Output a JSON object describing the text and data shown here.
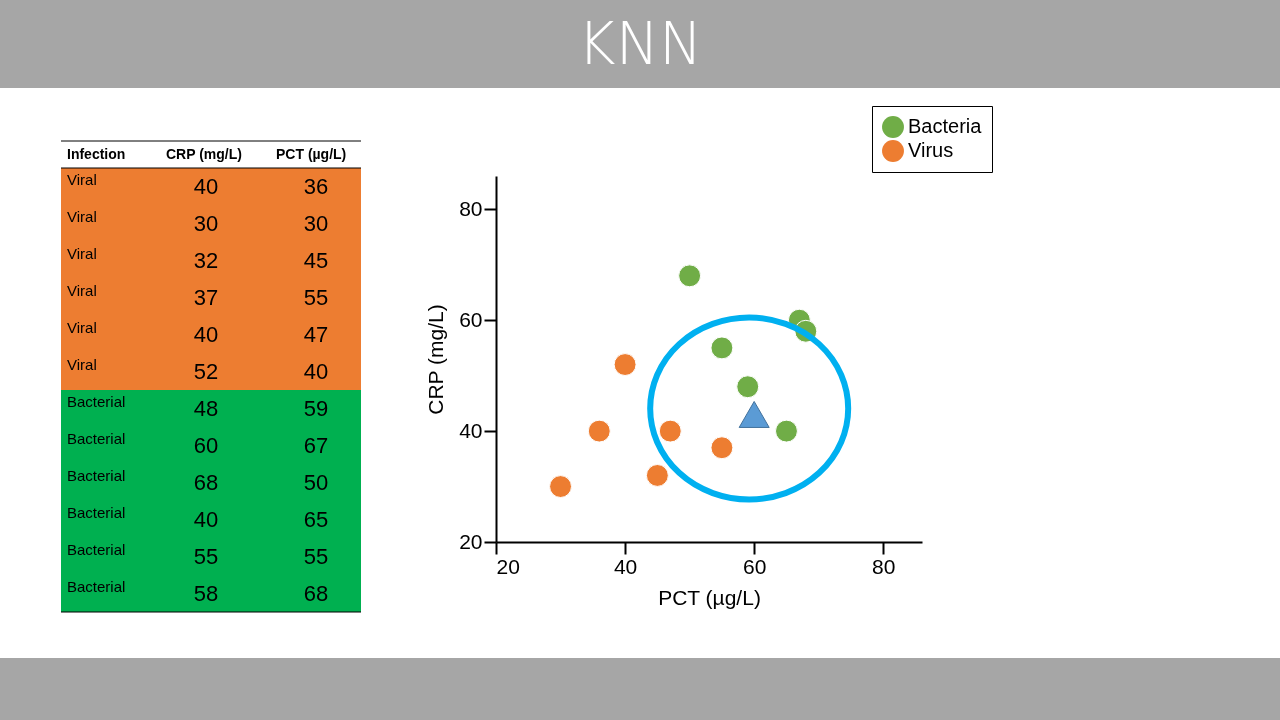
{
  "chart_data": [
    {
      "type": "other",
      "annotations": [
        "Infection",
        "CRP (mg/L)",
        "PCT (µg/L)",
        "Viral",
        "40",
        "36",
        "Viral",
        "30",
        "30",
        "Viral",
        "32",
        "45",
        "Viral",
        "37",
        "55",
        "Viral",
        "40",
        "47",
        "Viral",
        "52",
        "40",
        "Bacterial",
        "48",
        "59",
        "Bacterial",
        "60",
        "67",
        "Bacterial",
        "68",
        "50",
        "Bacterial",
        "40",
        "65",
        "Bacterial",
        "55",
        "55",
        "Bacterial",
        "58",
        "68"
      ],
      "colors": [
        "#ed7d31",
        "#ed7d31",
        "#ed7d31",
        "#ed7d31",
        "#ed7d31",
        "#ed7d31",
        "#00b050",
        "#00b050",
        "#00b050",
        "#00b050",
        "#00b050",
        "#00b050"
      ]
    },
    {
      "type": "scatter",
      "title": "KNN",
      "xlabel": "PCT (µg/L)",
      "ylabel": "CRP (mg/L)",
      "xlim": [
        20,
        86
      ],
      "ylim": [
        20,
        86
      ],
      "xticks": [
        20,
        40,
        60,
        80
      ],
      "yticks": [
        20,
        40,
        60,
        80
      ],
      "grid": false,
      "legend": "top right",
      "marker": "circle",
      "series": [
        {
          "name": "Bacteria",
          "color": "#70ad47",
          "x": [
            59,
            67,
            50,
            65,
            55,
            68
          ],
          "values": [
            48,
            60,
            68,
            40,
            55,
            58
          ]
        },
        {
          "name": "Virus",
          "color": "#ed7d31",
          "x": [
            36,
            30,
            45,
            55,
            47,
            40
          ],
          "values": [
            40,
            30,
            32,
            37,
            40,
            52
          ]
        },
        {
          "color": "#5b9bd5",
          "marker": "triangle",
          "x": [
            60
          ],
          "values": [
            43
          ]
        }
      ]
    }
  ]
}
